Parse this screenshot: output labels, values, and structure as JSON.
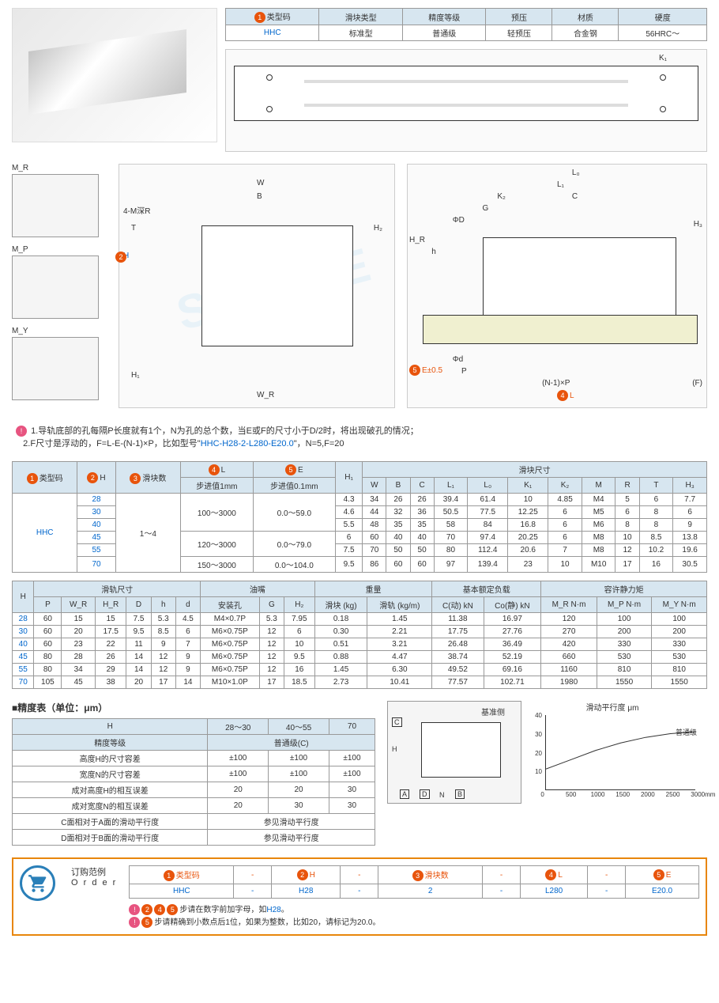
{
  "classify": {
    "headers": [
      "类型码",
      "滑块类型",
      "精度等级",
      "预压",
      "材质",
      "硬度"
    ],
    "badge": "1",
    "rows": [
      [
        "HHC",
        "标准型",
        "普通级",
        "轻预压",
        "合金钢",
        "56HRC～"
      ]
    ]
  },
  "moment_labels": [
    "M_R",
    "M_P",
    "M_Y"
  ],
  "diag_labels": {
    "mid": [
      "W",
      "B",
      "4-M深R",
      "T",
      "H",
      "H₁",
      "W_R",
      "H₂"
    ],
    "right": [
      "K₁",
      "L₀",
      "L₁",
      "K₂",
      "C",
      "G",
      "ΦD",
      "H_R",
      "h",
      "H₃",
      "Φd",
      "P",
      "(N-1)×P",
      "(F)",
      "L",
      "E±0.5"
    ],
    "badges": {
      "h": "2",
      "e": "5",
      "l": "4"
    }
  },
  "notes": {
    "line1": "1.导轨底部的孔每隔P长度就有1个，N为孔的总个数，当E或F的尺寸小于D/2时，将出现破孔的情况；",
    "line2": "2.F尺寸是浮动的，F=L-E-(N-1)×P，比如型号\"",
    "model": "HHC-H28-2-L280-E20.0",
    "line2b": "\"，N=5,F=20"
  },
  "table1": {
    "h1": [
      "类型码",
      "H",
      "滑块数",
      "L",
      "E",
      "H₁",
      "滑块尺寸"
    ],
    "h1_badges": [
      "1",
      "2",
      "3",
      "4",
      "5",
      "",
      ""
    ],
    "h2_left": [
      "",
      "步进值1mm",
      "步进值0.1mm",
      ""
    ],
    "h2_right": [
      "W",
      "B",
      "C",
      "L₁",
      "L₀",
      "K₁",
      "K₂",
      "M",
      "R",
      "T",
      "H₃"
    ],
    "rows": [
      {
        "code": "HHC",
        "h": "28",
        "blocks": "1～4",
        "l": "100～3000",
        "e": "0.0～59.0",
        "h1": "4.3",
        "vals": [
          "34",
          "26",
          "26",
          "39.4",
          "61.4",
          "10",
          "4.85",
          "M4",
          "5",
          "6",
          "7.7"
        ]
      },
      {
        "code": "",
        "h": "30",
        "blocks": "",
        "l": "",
        "e": "",
        "h1": "4.6",
        "vals": [
          "44",
          "32",
          "36",
          "50.5",
          "77.5",
          "12.25",
          "6",
          "M5",
          "6",
          "8",
          "6"
        ]
      },
      {
        "code": "",
        "h": "40",
        "blocks": "",
        "l": "",
        "e": "",
        "h1": "5.5",
        "vals": [
          "48",
          "35",
          "35",
          "58",
          "84",
          "16.8",
          "6",
          "M6",
          "8",
          "8",
          "9"
        ]
      },
      {
        "code": "",
        "h": "45",
        "blocks": "",
        "l": "120～3000",
        "e": "0.0～79.0",
        "h1": "6",
        "vals": [
          "60",
          "40",
          "40",
          "70",
          "97.4",
          "20.25",
          "6",
          "M8",
          "10",
          "8.5",
          "13.8"
        ]
      },
      {
        "code": "",
        "h": "55",
        "blocks": "",
        "l": "",
        "e": "",
        "h1": "7.5",
        "vals": [
          "70",
          "50",
          "50",
          "80",
          "112.4",
          "20.6",
          "7",
          "M8",
          "12",
          "10.2",
          "19.6"
        ]
      },
      {
        "code": "",
        "h": "70",
        "blocks": "",
        "l": "150～3000",
        "e": "0.0～104.0",
        "h1": "9.5",
        "vals": [
          "86",
          "60",
          "60",
          "97",
          "139.4",
          "23",
          "10",
          "M10",
          "17",
          "16",
          "30.5"
        ]
      }
    ]
  },
  "table2": {
    "h1": [
      "H",
      "滑轨尺寸",
      "油嘴",
      "重量",
      "基本额定负载",
      "容许静力矩"
    ],
    "h2": [
      "P",
      "W_R",
      "H_R",
      "D",
      "h",
      "d",
      "安装孔",
      "G",
      "H₂",
      "滑块 (kg)",
      "滑轨 (kg/m)",
      "C(动) kN",
      "Co(静) kN",
      "M_R N·m",
      "M_P N·m",
      "M_Y N·m"
    ],
    "rows": [
      [
        "28",
        "60",
        "15",
        "15",
        "7.5",
        "5.3",
        "4.5",
        "M4×0.7P",
        "5.3",
        "7.95",
        "0.18",
        "1.45",
        "11.38",
        "16.97",
        "120",
        "100",
        "100"
      ],
      [
        "30",
        "60",
        "20",
        "17.5",
        "9.5",
        "8.5",
        "6",
        "M6×0.75P",
        "12",
        "6",
        "0.30",
        "2.21",
        "17.75",
        "27.76",
        "270",
        "200",
        "200"
      ],
      [
        "40",
        "60",
        "23",
        "22",
        "11",
        "9",
        "7",
        "M6×0.75P",
        "12",
        "10",
        "0.51",
        "3.21",
        "26.48",
        "36.49",
        "420",
        "330",
        "330"
      ],
      [
        "45",
        "80",
        "28",
        "26",
        "14",
        "12",
        "9",
        "M6×0.75P",
        "12",
        "9.5",
        "0.88",
        "4.47",
        "38.74",
        "52.19",
        "660",
        "530",
        "530"
      ],
      [
        "55",
        "80",
        "34",
        "29",
        "14",
        "12",
        "9",
        "M6×0.75P",
        "12",
        "16",
        "1.45",
        "6.30",
        "49.52",
        "69.16",
        "1160",
        "810",
        "810"
      ],
      [
        "70",
        "105",
        "45",
        "38",
        "20",
        "17",
        "14",
        "M10×1.0P",
        "17",
        "18.5",
        "2.73",
        "10.41",
        "77.57",
        "102.71",
        "1980",
        "1550",
        "1550"
      ]
    ]
  },
  "precision": {
    "title": "精度表（单位：μm）",
    "headers": [
      "H",
      "28～30",
      "40～55",
      "70"
    ],
    "grade_row": [
      "精度等级",
      "普通级(C)"
    ],
    "rows": [
      [
        "高度H的尺寸容差",
        "±100",
        "±100",
        "±100"
      ],
      [
        "宽度N的尺寸容差",
        "±100",
        "±100",
        "±100"
      ],
      [
        "成对高度H的相互误差",
        "20",
        "20",
        "30"
      ],
      [
        "成对宽度N的相互误差",
        "20",
        "30",
        "30"
      ],
      [
        "C面相对于A面的滑动平行度",
        "参见滑动平行度"
      ],
      [
        "D面相对于B面的滑动平行度",
        "参见滑动平行度"
      ]
    ]
  },
  "cross_labels": {
    "base": "基准侧",
    "letters": [
      "C",
      "H",
      "A",
      "D",
      "N",
      "B"
    ]
  },
  "chart": {
    "title": "滑动平行度 μm",
    "ylim": [
      0,
      40
    ],
    "ytick_step": 10,
    "xlim": [
      0,
      3000
    ],
    "xtick_step": 500,
    "xticks": [
      "0",
      "500",
      "1000",
      "1500",
      "2000",
      "2500",
      "3000mm"
    ],
    "yticks": [
      "10",
      "20",
      "30",
      "40"
    ],
    "line_label": "普通级",
    "points": [
      [
        0,
        11
      ],
      [
        500,
        16
      ],
      [
        1000,
        21
      ],
      [
        1500,
        25
      ],
      [
        2000,
        28
      ],
      [
        2500,
        30
      ],
      [
        3000,
        31
      ]
    ],
    "line_color": "#333333",
    "bg": "#ffffff"
  },
  "order": {
    "label": "订购范例",
    "label_en": "O r d e r",
    "headers": [
      "类型码",
      "-",
      "H",
      "-",
      "滑块数",
      "-",
      "L",
      "-",
      "E"
    ],
    "badges": [
      "1",
      "",
      "2",
      "",
      "3",
      "",
      "4",
      "",
      "5"
    ],
    "values": [
      "HHC",
      "-",
      "H28",
      "-",
      "2",
      "-",
      "L280",
      "-",
      "E20.0"
    ],
    "note1_badge": "!",
    "note1_nums": "245",
    "note1": "步请在数字前加字母，如",
    "note1_hl": "H28",
    "note1b": "。",
    "note2_badge": "!",
    "note2_num": "5",
    "note2": "步请精确到小数点后1位，如果为整数，比如20，请标记为20.0。"
  }
}
